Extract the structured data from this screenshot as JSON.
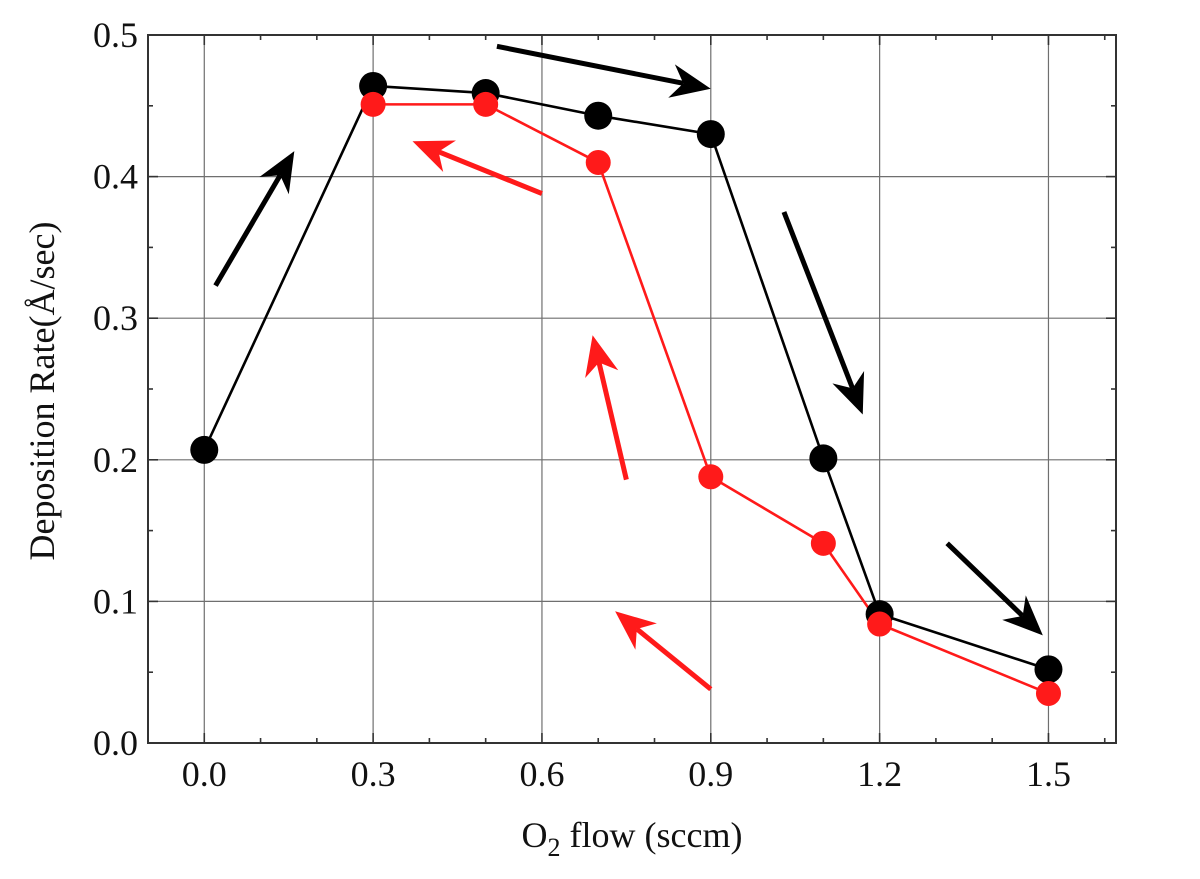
{
  "chart_data": {
    "type": "line",
    "title": "",
    "xlabel": {
      "main": "O",
      "sub": "2",
      "rest": " flow (sccm)"
    },
    "ylabel": "Deposition Rate(Å/sec)",
    "xlim": [
      -0.1,
      1.62
    ],
    "ylim": [
      0.0,
      0.5
    ],
    "x_ticks": [
      0.0,
      0.3,
      0.6,
      0.9,
      1.2,
      1.5
    ],
    "x_tick_labels": [
      "0.0",
      "0.3",
      "0.6",
      "0.9",
      "1.2",
      "1.5"
    ],
    "y_ticks": [
      0.0,
      0.1,
      0.2,
      0.3,
      0.4,
      0.5
    ],
    "y_tick_labels": [
      "0.0",
      "0.1",
      "0.2",
      "0.3",
      "0.4",
      "0.5"
    ],
    "grid": true,
    "legend": "none",
    "series": [
      {
        "color": "#000000",
        "x": [
          0.0,
          0.3,
          0.5,
          0.7,
          0.9,
          1.1,
          1.2,
          1.5
        ],
        "y": [
          0.207,
          0.464,
          0.459,
          0.443,
          0.43,
          0.201,
          0.091,
          0.052
        ]
      },
      {
        "color": "#ff1a1a",
        "x": [
          0.3,
          0.5,
          0.7,
          0.9,
          1.1,
          1.2,
          1.5
        ],
        "y": [
          0.451,
          0.451,
          0.41,
          0.188,
          0.141,
          0.084,
          0.035
        ]
      }
    ],
    "annotations": [
      {
        "type": "arrow",
        "color": "#000000",
        "from": [
          0.02,
          0.323
        ],
        "to": [
          0.16,
          0.418
        ]
      },
      {
        "type": "arrow",
        "color": "#000000",
        "from": [
          0.52,
          0.492
        ],
        "to": [
          0.9,
          0.462
        ]
      },
      {
        "type": "arrow",
        "color": "#000000",
        "from": [
          1.03,
          0.375
        ],
        "to": [
          1.17,
          0.232
        ]
      },
      {
        "type": "arrow",
        "color": "#000000",
        "from": [
          1.32,
          0.141
        ],
        "to": [
          1.49,
          0.076
        ]
      },
      {
        "type": "arrow",
        "color": "#ff1a1a",
        "from": [
          0.9,
          0.038
        ],
        "to": [
          0.73,
          0.093
        ]
      },
      {
        "type": "arrow",
        "color": "#ff1a1a",
        "from": [
          0.75,
          0.186
        ],
        "to": [
          0.69,
          0.288
        ]
      },
      {
        "type": "arrow",
        "color": "#ff1a1a",
        "from": [
          0.6,
          0.388
        ],
        "to": [
          0.37,
          0.425
        ]
      }
    ]
  }
}
